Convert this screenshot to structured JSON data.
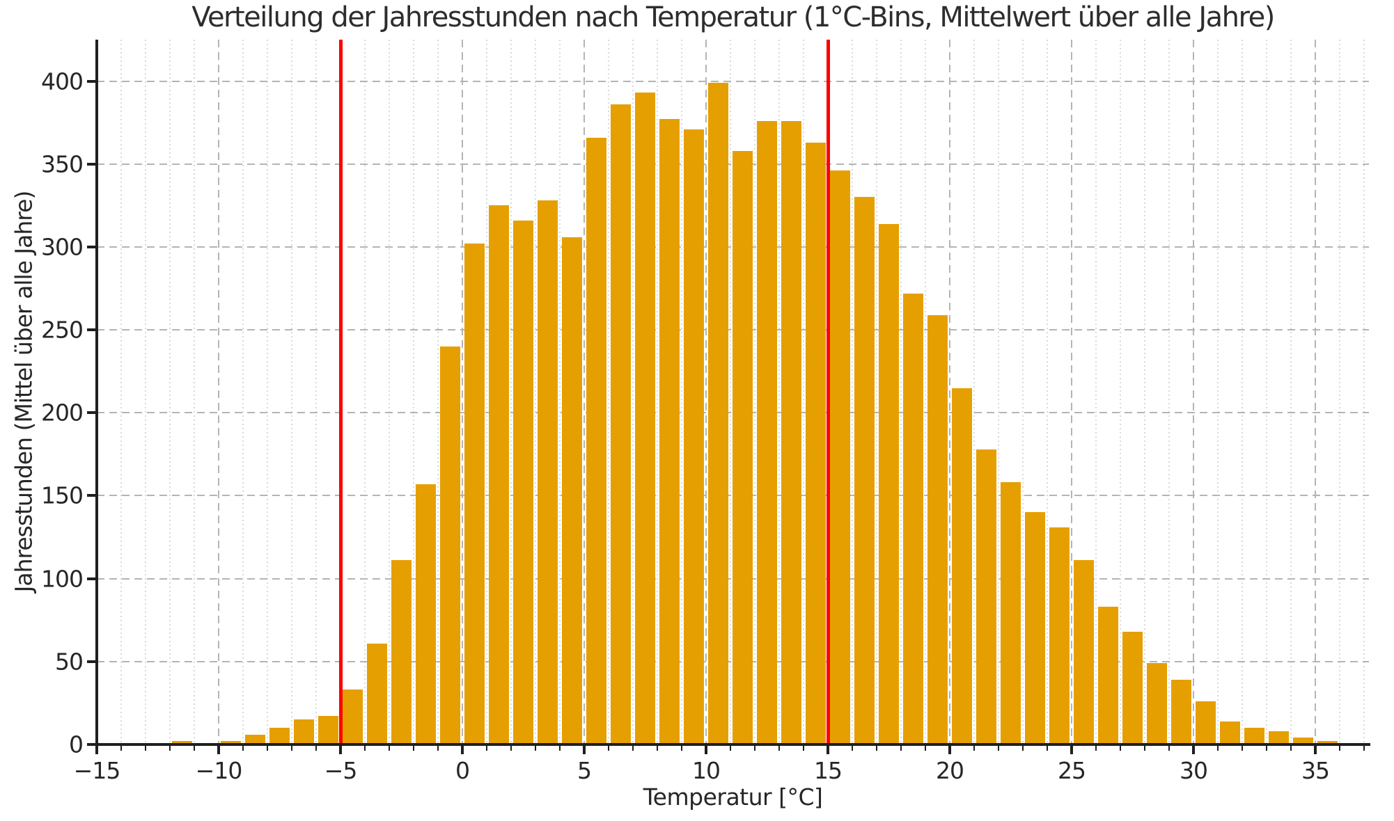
{
  "chart_data": {
    "type": "bar",
    "title": "Verteilung der Jahresstunden nach Temperatur (1°C-Bins, Mittelwert über alle Jahre)",
    "xlabel": "Temperatur [°C]",
    "ylabel": "Jahresstunden (Mittel über alle Jahre)",
    "bin_width_c": 1,
    "bin_starts": [
      -12,
      -11,
      -10,
      -9,
      -8,
      -7,
      -6,
      -5,
      -4,
      -3,
      -2,
      -1,
      0,
      1,
      2,
      3,
      4,
      5,
      6,
      7,
      8,
      9,
      10,
      11,
      12,
      13,
      14,
      15,
      16,
      17,
      18,
      19,
      20,
      21,
      22,
      23,
      24,
      25,
      26,
      27,
      28,
      29,
      30,
      31,
      32,
      33,
      34,
      35
    ],
    "values": [
      2,
      1,
      2,
      6,
      10,
      15,
      17,
      33,
      61,
      111,
      157,
      240,
      302,
      325,
      316,
      328,
      306,
      366,
      386,
      393,
      377,
      371,
      399,
      358,
      376,
      376,
      363,
      346,
      330,
      314,
      272,
      259,
      215,
      178,
      158,
      140,
      131,
      111,
      83,
      68,
      49,
      39,
      26,
      14,
      10,
      8,
      4,
      2
    ],
    "xlim": [
      -15,
      37.2
    ],
    "ylim": [
      0,
      425
    ],
    "x_major_ticks": [
      -15,
      -10,
      -5,
      0,
      5,
      10,
      15,
      20,
      25,
      30,
      35
    ],
    "x_minor_tick_step": 1,
    "y_major_ticks": [
      0,
      50,
      100,
      150,
      200,
      250,
      300,
      350,
      400
    ],
    "vlines": [
      {
        "x": -5
      },
      {
        "x": 15
      }
    ],
    "grid": {
      "major_dashed": true,
      "minor_dotted_x": true
    },
    "legend": "none",
    "colors": {
      "bar": "#E69F00",
      "vline": "#FF0000",
      "grid_major": "#b4b4b4",
      "grid_minor": "#d9d9d9",
      "axis": "#1f1f1f",
      "text": "#262626",
      "background": "#ffffff"
    }
  }
}
